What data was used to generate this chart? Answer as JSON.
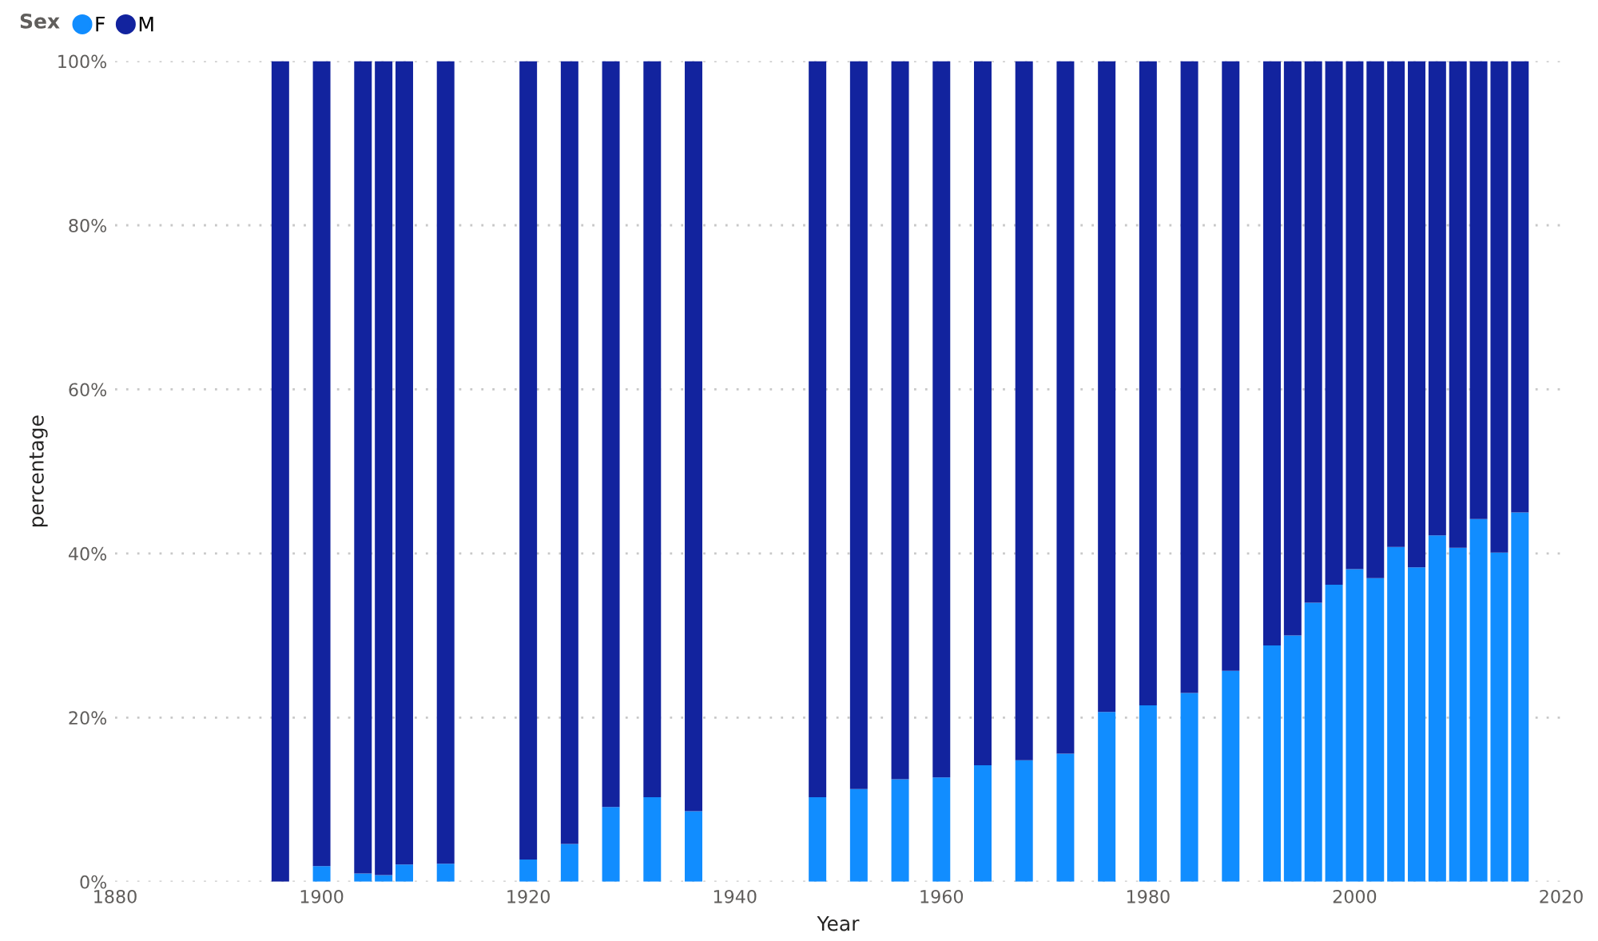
{
  "chart_data": {
    "type": "bar",
    "stacked": true,
    "xlabel": "Year",
    "ylabel": "percentage",
    "legend_title": "Sex",
    "legend": "top left",
    "x": [
      1896,
      1900,
      1904,
      1906,
      1908,
      1912,
      1920,
      1924,
      1928,
      1932,
      1936,
      1948,
      1952,
      1956,
      1960,
      1964,
      1968,
      1972,
      1976,
      1980,
      1984,
      1988,
      1992,
      1994,
      1996,
      1998,
      2000,
      2002,
      2004,
      2006,
      2008,
      2010,
      2012,
      2014,
      2016
    ],
    "series": [
      {
        "name": "F",
        "color": "#118dff",
        "values": [
          0,
          1.9,
          1.0,
          0.8,
          2.1,
          2.2,
          2.7,
          4.6,
          9.1,
          10.3,
          8.6,
          10.3,
          11.3,
          12.5,
          12.7,
          14.2,
          14.8,
          15.6,
          20.7,
          21.5,
          23.0,
          25.7,
          28.8,
          30.0,
          34.0,
          36.2,
          38.1,
          37.0,
          40.8,
          38.3,
          42.2,
          40.7,
          44.2,
          40.1,
          45.0
        ]
      },
      {
        "name": "M",
        "color": "#12239e",
        "values": [
          100,
          98.1,
          99.0,
          99.2,
          97.9,
          97.8,
          97.3,
          95.4,
          90.9,
          89.7,
          91.4,
          89.7,
          88.7,
          87.5,
          87.3,
          85.8,
          85.2,
          84.4,
          79.3,
          78.5,
          77.0,
          74.3,
          71.2,
          70.0,
          66.0,
          63.8,
          61.9,
          63.0,
          59.2,
          61.7,
          57.8,
          59.3,
          55.8,
          59.9,
          55.0
        ]
      }
    ],
    "xlim": [
      1880,
      2020
    ],
    "xticks": [
      1880,
      1900,
      1920,
      1940,
      1960,
      1980,
      2000,
      2020
    ],
    "ylim": [
      0,
      100
    ],
    "yticks": [
      {
        "value": 0,
        "label": "0%"
      },
      {
        "value": 20,
        "label": "20%"
      },
      {
        "value": 40,
        "label": "40%"
      },
      {
        "value": 60,
        "label": "60%"
      },
      {
        "value": 80,
        "label": "80%"
      },
      {
        "value": 100,
        "label": "100%"
      }
    ],
    "grid": "y"
  }
}
